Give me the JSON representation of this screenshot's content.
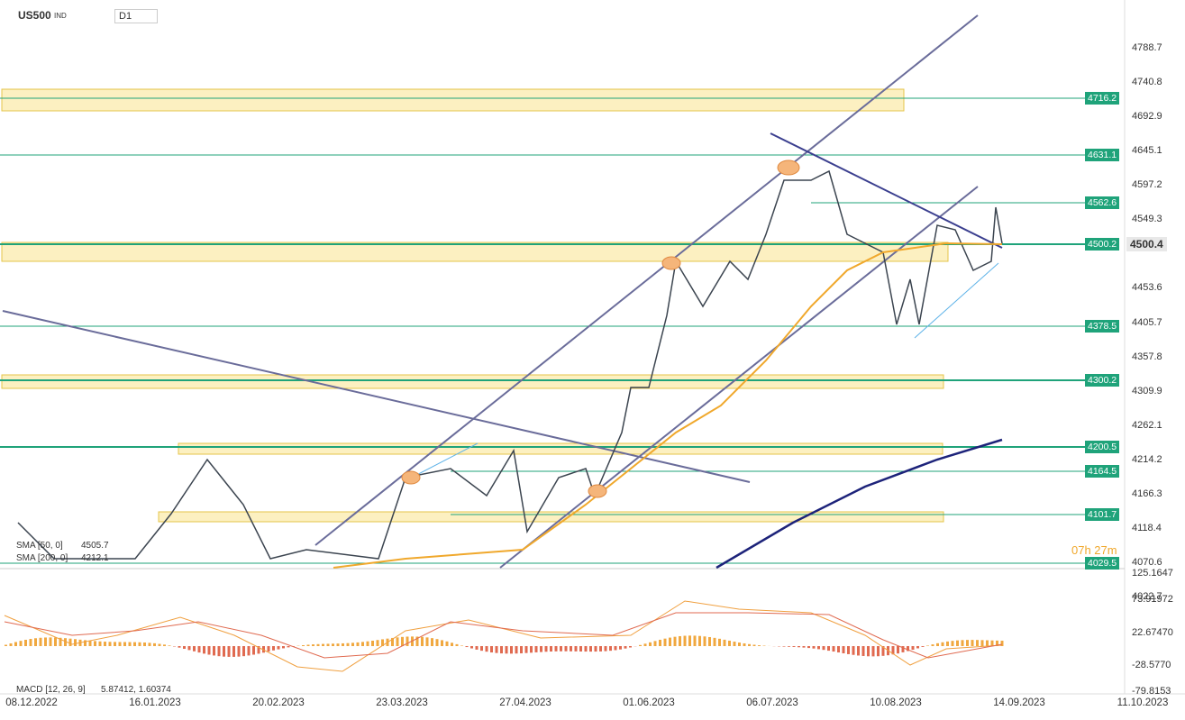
{
  "header": {
    "symbol": "US500",
    "exchange": "IND",
    "interval": "D1"
  },
  "price_axis": [
    "4788.7",
    "4740.8",
    "4692.9",
    "4645.1",
    "4597.2",
    "4549.3",
    "4453.6",
    "4405.7",
    "4357.8",
    "4309.9",
    "4262.1",
    "4214.2",
    "4166.3",
    "4118.4",
    "4070.6",
    "4022.7"
  ],
  "levels": [
    "4716.2",
    "4631.1",
    "4562.6",
    "4500.2",
    "4378.5",
    "4300.2",
    "4200.5",
    "4164.5",
    "4101.7",
    "4029.5"
  ],
  "current_price": "4500.4",
  "countdown": "07h 27m",
  "indicators": [
    {
      "name": "SMA [50, 0]",
      "value": "4505.7"
    },
    {
      "name": "SMA [200, 0]",
      "value": "4212.1"
    },
    {
      "name": "MACD [12, 26, 9]",
      "value": "5.87412, 1.60374"
    }
  ],
  "macd_axis": [
    "125.1647",
    "73.91972",
    "22.67470",
    "-28.5770",
    "-79.8153"
  ],
  "dates": [
    "08.12.2022",
    "16.01.2023",
    "20.02.2023",
    "23.03.2023",
    "27.04.2023",
    "01.06.2023",
    "06.07.2023",
    "10.08.2023",
    "14.09.2023",
    "11.10.2023"
  ]
}
